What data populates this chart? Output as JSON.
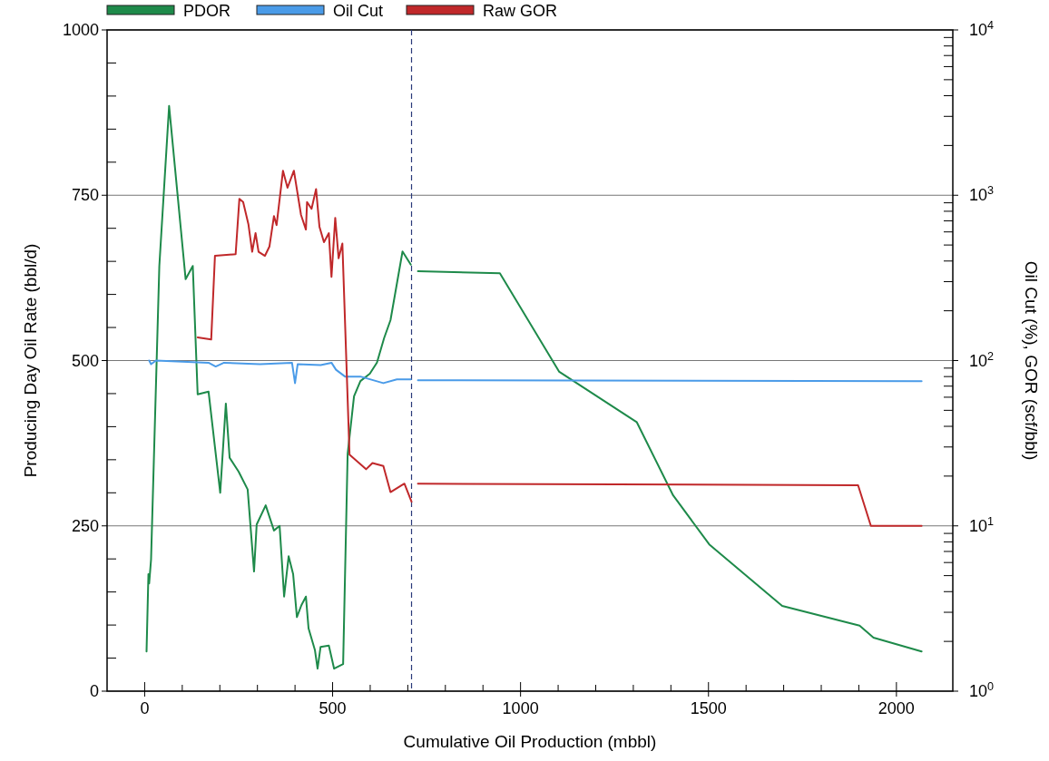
{
  "chart_data": {
    "type": "line",
    "xlabel": "Cumulative Oil Production (mbbl)",
    "ylabel": "Producing Day Oil Rate (bbl/d)",
    "y2label": "Oil Cut (%), GOR (scf/bbl)",
    "xlim": [
      -100,
      2150
    ],
    "ylim": [
      0,
      1000
    ],
    "y2lim": [
      1,
      10000
    ],
    "log": "y2",
    "grid": "y",
    "legend": "top",
    "marker": "none",
    "line_style": "solid",
    "xticks": [
      0,
      {
        "value": 100,
        "label": null
      },
      {
        "value": 200,
        "label": null
      },
      {
        "value": 300,
        "label": null
      },
      {
        "value": 400,
        "label": null
      },
      500,
      {
        "value": 600,
        "label": null
      },
      {
        "value": 700,
        "label": null
      },
      {
        "value": 800,
        "label": null
      },
      {
        "value": 900,
        "label": null
      },
      1000,
      {
        "value": 1100,
        "label": null
      },
      {
        "value": 1200,
        "label": null
      },
      {
        "value": 1300,
        "label": null
      },
      {
        "value": 1400,
        "label": null
      },
      1500,
      {
        "value": 1600,
        "label": null
      },
      {
        "value": 1700,
        "label": null
      },
      {
        "value": 1800,
        "label": null
      },
      {
        "value": 1900,
        "label": null
      },
      2000
    ],
    "yticks": [
      0,
      {
        "value": 50,
        "label": null
      },
      {
        "value": 100,
        "label": null
      },
      {
        "value": 150,
        "label": null
      },
      {
        "value": 200,
        "label": null
      },
      250,
      {
        "value": 300,
        "label": null
      },
      {
        "value": 350,
        "label": null
      },
      {
        "value": 400,
        "label": null
      },
      {
        "value": 450,
        "label": null
      },
      500,
      {
        "value": 550,
        "label": null
      },
      {
        "value": 600,
        "label": null
      },
      {
        "value": 650,
        "label": null
      },
      {
        "value": 700,
        "label": null
      },
      750,
      {
        "value": 800,
        "label": null
      },
      {
        "value": 850,
        "label": null
      },
      {
        "value": 900,
        "label": null
      },
      {
        "value": 950,
        "label": null
      },
      1000
    ],
    "y2ticks": [
      {
        "value": 1,
        "label": "10$^{0}$"
      },
      {
        "value": 2,
        "label": null
      },
      {
        "value": 3,
        "label": null
      },
      {
        "value": 4,
        "label": null
      },
      {
        "value": 5,
        "label": null
      },
      {
        "value": 6,
        "label": null
      },
      {
        "value": 7,
        "label": null
      },
      {
        "value": 8,
        "label": null
      },
      {
        "value": 9,
        "label": null
      },
      {
        "value": 10,
        "label": "10$^{1}$"
      },
      {
        "value": 20,
        "label": null
      },
      {
        "value": 30,
        "label": null
      },
      {
        "value": 40,
        "label": null
      },
      {
        "value": 50,
        "label": null
      },
      {
        "value": 60,
        "label": null
      },
      {
        "value": 70,
        "label": null
      },
      {
        "value": 80,
        "label": null
      },
      {
        "value": 90,
        "label": null
      },
      {
        "value": 100,
        "label": "10$^{2}$"
      },
      {
        "value": 200,
        "label": null
      },
      {
        "value": 300,
        "label": null
      },
      {
        "value": 400,
        "label": null
      },
      {
        "value": 500,
        "label": null
      },
      {
        "value": 600,
        "label": null
      },
      {
        "value": 700,
        "label": null
      },
      {
        "value": 800,
        "label": null
      },
      {
        "value": 900,
        "label": null
      },
      {
        "value": 1000,
        "label": "10$^{3}$"
      },
      {
        "value": 2000,
        "label": null
      },
      {
        "value": 3000,
        "label": null
      },
      {
        "value": 4000,
        "label": null
      },
      {
        "value": 5000,
        "label": null
      },
      {
        "value": 6000,
        "label": null
      },
      {
        "value": 7000,
        "label": null
      },
      {
        "value": 8000,
        "label": null
      },
      {
        "value": 9000,
        "label": null
      },
      {
        "value": 10000,
        "label": "10$^{4}$"
      }
    ],
    "ref_lines": [
      {
        "axis": "x",
        "value": 710,
        "color": "#2a3a7a",
        "line_style": "dashed"
      }
    ],
    "series": [
      {
        "name": "PDOR",
        "color": "#1e8a4a",
        "x": [
          5,
          10,
          12,
          17,
          39,
          65,
          109,
          128,
          141,
          170,
          201,
          216,
          226,
          250,
          274,
          291,
          298,
          322,
          344,
          359,
          371,
          383,
          395,
          405,
          417,
          429,
          436,
          453,
          460,
          468,
          490,
          504,
          528,
          540,
          557,
          574,
          599,
          618,
          637,
          654,
          686,
          708,
          717,
          727,
          945,
          1103,
          1309,
          1406,
          1502,
          1696,
          1902,
          1939,
          2067
        ],
        "values": [
          60,
          177,
          163,
          199,
          643,
          885,
          623,
          643,
          449,
          453,
          300,
          435,
          353,
          332,
          305,
          181,
          252,
          281,
          243,
          250,
          143,
          204,
          177,
          112,
          130,
          143,
          95,
          62,
          34,
          67,
          69,
          34,
          41,
          359,
          446,
          469,
          480,
          497,
          534,
          561,
          665,
          645,
          null,
          635,
          632,
          483,
          407,
          296,
          222,
          129,
          99,
          81,
          60
        ]
      },
      {
        "name": "Oil Cut",
        "color": "#4a9be8",
        "axis": "y2",
        "x": [
          12,
          17,
          30,
          170,
          189,
          211,
          307,
          392,
          400,
          407,
          468,
          497,
          509,
          533,
          574,
          635,
          671,
          708,
          717,
          727,
          2067
        ],
        "values": [
          100,
          95,
          100,
          97,
          92,
          97,
          95,
          97,
          73,
          95,
          94,
          97,
          88,
          80,
          80,
          73,
          77,
          77,
          null,
          76,
          75
        ]
      },
      {
        "name": "Raw GOR",
        "color": "#c0282a",
        "axis": "y2",
        "x": [
          141,
          177,
          187,
          242,
          252,
          262,
          276,
          286,
          295,
          303,
          320,
          332,
          344,
          351,
          368,
          380,
          397,
          416,
          429,
          432,
          444,
          456,
          465,
          477,
          490,
          497,
          507,
          516,
          526,
          545,
          589,
          606,
          635,
          654,
          691,
          710,
          717,
          727,
          1898,
          1932,
          2067
        ],
        "values": [
          138,
          134,
          430,
          440,
          952,
          910,
          668,
          455,
          590,
          455,
          430,
          490,
          748,
          660,
          1408,
          1110,
          1408,
          760,
          620,
          910,
          828,
          1090,
          645,
          520,
          590,
          321,
          730,
          415,
          510,
          27,
          22,
          24,
          23,
          16,
          18,
          14,
          null,
          18,
          17.6,
          10,
          10
        ]
      }
    ]
  }
}
